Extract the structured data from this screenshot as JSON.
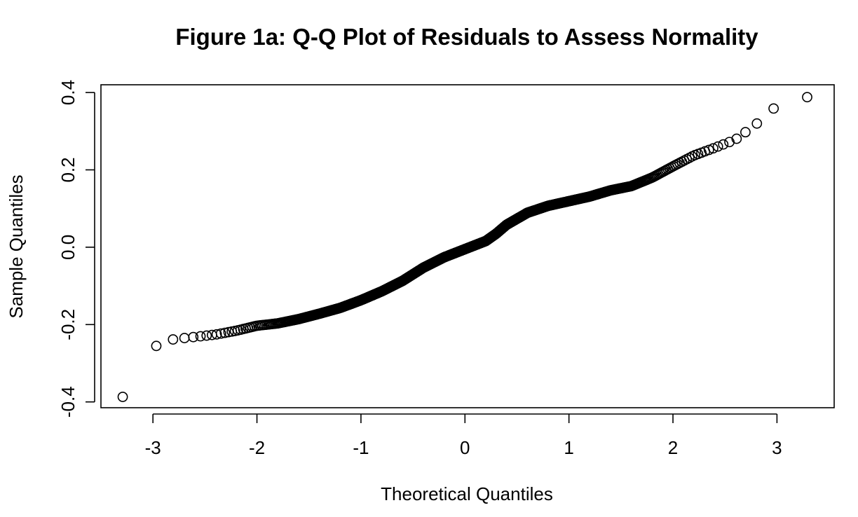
{
  "chart_data": {
    "type": "scatter",
    "title": "Figure 1a: Q-Q Plot of Residuals to Assess Normality",
    "xlabel": "Theoretical Quantiles",
    "ylabel": "Sample Quantiles",
    "xlim": [
      -3.5,
      3.55
    ],
    "ylim": [
      -0.415,
      0.42
    ],
    "x_ticks": [
      -3,
      -2,
      -1,
      0,
      1,
      2,
      3
    ],
    "x_tick_labels": [
      "-3",
      "-2",
      "-1",
      "0",
      "1",
      "2",
      "3"
    ],
    "y_ticks": [
      -0.4,
      -0.2,
      0.0,
      0.2,
      0.4
    ],
    "y_tick_labels": [
      "-0.4",
      "-0.2",
      "0.0",
      "0.2",
      "0.4"
    ],
    "grid": false,
    "legend": "none",
    "point_color": "#000000",
    "n_points": 1000,
    "quantile_curve": [
      [
        -3.29,
        -0.387
      ],
      [
        -2.95,
        -0.248
      ],
      [
        -2.8,
        -0.238
      ],
      [
        -2.6,
        -0.232
      ],
      [
        -2.4,
        -0.226
      ],
      [
        -2.2,
        -0.216
      ],
      [
        -2.0,
        -0.203
      ],
      [
        -1.8,
        -0.197
      ],
      [
        -1.6,
        -0.186
      ],
      [
        -1.4,
        -0.172
      ],
      [
        -1.2,
        -0.157
      ],
      [
        -1.0,
        -0.137
      ],
      [
        -0.8,
        -0.114
      ],
      [
        -0.6,
        -0.087
      ],
      [
        -0.4,
        -0.053
      ],
      [
        -0.2,
        -0.026
      ],
      [
        0.0,
        -0.005
      ],
      [
        0.2,
        0.016
      ],
      [
        0.3,
        0.035
      ],
      [
        0.4,
        0.058
      ],
      [
        0.6,
        0.089
      ],
      [
        0.8,
        0.107
      ],
      [
        1.0,
        0.119
      ],
      [
        1.2,
        0.131
      ],
      [
        1.4,
        0.147
      ],
      [
        1.6,
        0.158
      ],
      [
        1.8,
        0.18
      ],
      [
        2.0,
        0.209
      ],
      [
        2.2,
        0.237
      ],
      [
        2.4,
        0.257
      ],
      [
        2.6,
        0.278
      ],
      [
        2.8,
        0.318
      ],
      [
        2.95,
        0.357
      ],
      [
        3.29,
        0.388
      ]
    ]
  }
}
